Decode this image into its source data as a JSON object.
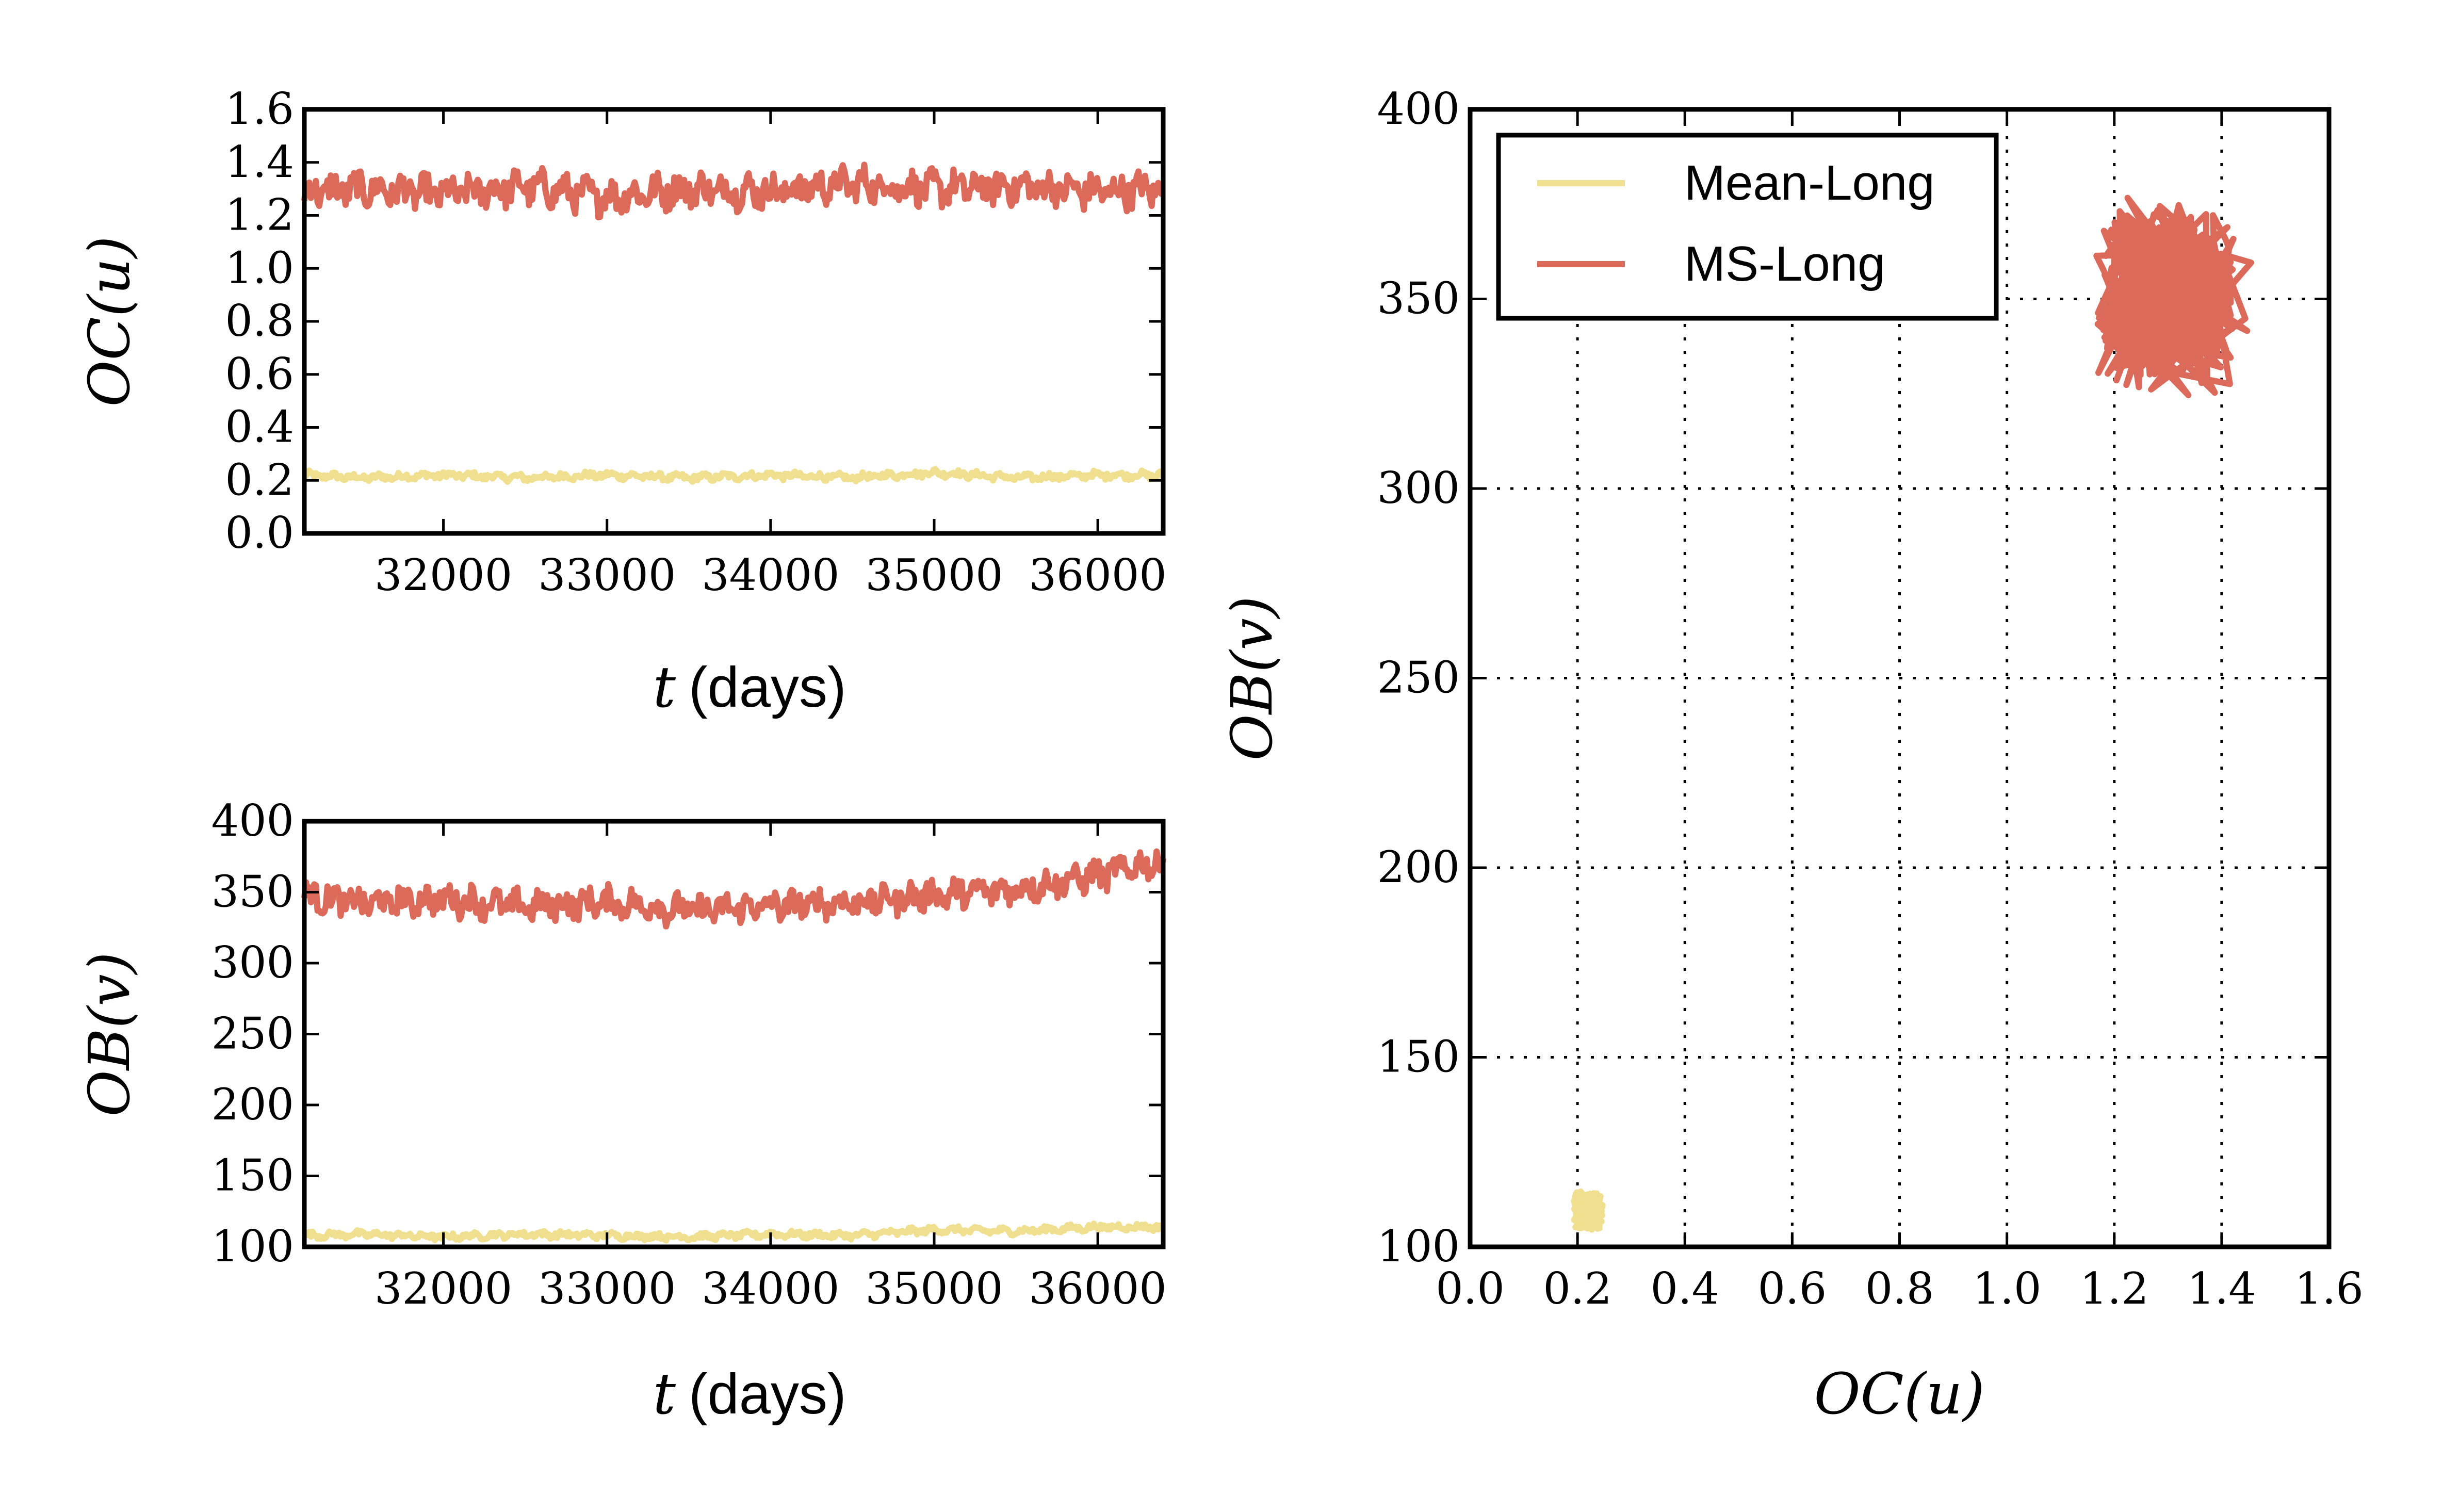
{
  "colors": {
    "mean_long": "#f0df8e",
    "ms_long": "#db6a5b",
    "axes": "#000000",
    "grid": "#000000"
  },
  "chart_data": [
    {
      "id": "oc_time",
      "type": "line",
      "x_axis_label_var": "t",
      "x_axis_label_unit": "(days)",
      "y_axis_label": "OC(u)",
      "xlim": [
        31150,
        36400
      ],
      "ylim": [
        0.0,
        1.6
      ],
      "xticks": [
        "32000",
        "33000",
        "34000",
        "35000",
        "36000"
      ],
      "yticks": [
        "0.0",
        "0.2",
        "0.4",
        "0.6",
        "0.8",
        "1.0",
        "1.2",
        "1.4",
        "1.6"
      ],
      "grid": false,
      "series": [
        {
          "name": "Mean-Long",
          "color_key": "mean_long",
          "x": [
            31150,
            31500,
            32000,
            32500,
            33000,
            33500,
            34000,
            34500,
            35000,
            35500,
            36000,
            36400
          ],
          "y": [
            0.22,
            0.21,
            0.22,
            0.21,
            0.22,
            0.21,
            0.22,
            0.21,
            0.23,
            0.21,
            0.22,
            0.22
          ]
        },
        {
          "name": "MS-Long",
          "color_key": "ms_long",
          "x": [
            31150,
            31500,
            32000,
            32500,
            33000,
            33500,
            34000,
            34500,
            35000,
            35500,
            36000,
            36400
          ],
          "y": [
            1.29,
            1.3,
            1.28,
            1.31,
            1.27,
            1.3,
            1.29,
            1.32,
            1.3,
            1.31,
            1.29,
            1.3
          ]
        }
      ]
    },
    {
      "id": "ob_time",
      "type": "line",
      "x_axis_label_var": "t",
      "x_axis_label_unit": "(days)",
      "y_axis_label": "OB(v)",
      "xlim": [
        31150,
        36400
      ],
      "ylim": [
        100,
        400
      ],
      "xticks": [
        "32000",
        "33000",
        "34000",
        "35000",
        "36000"
      ],
      "yticks": [
        "100",
        "150",
        "200",
        "250",
        "300",
        "350",
        "400"
      ],
      "grid": false,
      "series": [
        {
          "name": "Mean-Long",
          "color_key": "mean_long",
          "x": [
            31150,
            31500,
            32000,
            32500,
            33000,
            33500,
            34000,
            34500,
            35000,
            35500,
            36000,
            36400
          ],
          "y": [
            108,
            109,
            107,
            109,
            108,
            107,
            109,
            108,
            112,
            111,
            114,
            114
          ]
        },
        {
          "name": "MS-Long",
          "color_key": "ms_long",
          "x": [
            31150,
            31500,
            32000,
            32500,
            33000,
            33500,
            34000,
            34500,
            35000,
            35500,
            36000,
            36400
          ],
          "y": [
            348,
            342,
            345,
            340,
            343,
            337,
            340,
            343,
            348,
            352,
            362,
            372
          ]
        }
      ]
    },
    {
      "id": "phase",
      "type": "line",
      "x_axis_label": "OC(u)",
      "y_axis_label": "OB(v)",
      "xlim": [
        0.0,
        1.6
      ],
      "ylim": [
        100,
        400
      ],
      "xticks": [
        "0.0",
        "0.2",
        "0.4",
        "0.6",
        "0.8",
        "1.0",
        "1.2",
        "1.4",
        "1.6"
      ],
      "yticks": [
        "100",
        "150",
        "200",
        "250",
        "300",
        "350",
        "400"
      ],
      "grid": true,
      "legend_position": "top-left",
      "series": [
        {
          "name": "Mean-Long",
          "color_key": "mean_long",
          "x_range": [
            0.19,
            0.25
          ],
          "y_range": [
            104,
            115
          ]
        },
        {
          "name": "MS-Long",
          "color_key": "ms_long",
          "x_range": [
            1.14,
            1.46
          ],
          "y_range": [
            322,
            380
          ]
        }
      ]
    }
  ],
  "legend": {
    "items": [
      {
        "label": "Mean-Long",
        "color_key": "mean_long"
      },
      {
        "label": "MS-Long",
        "color_key": "ms_long"
      }
    ]
  }
}
